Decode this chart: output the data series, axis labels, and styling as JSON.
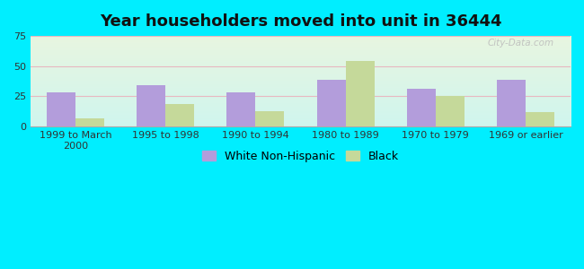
{
  "title": "Year householders moved into unit in 36444",
  "categories": [
    "1999 to March\n2000",
    "1995 to 1998",
    "1990 to 1994",
    "1980 to 1989",
    "1970 to 1979",
    "1969 or earlier"
  ],
  "white_values": [
    28,
    34,
    28,
    39,
    31,
    39
  ],
  "black_values": [
    7,
    19,
    13,
    54,
    25,
    12
  ],
  "white_color": "#b39ddb",
  "black_color": "#c5d99a",
  "ylim": [
    0,
    75
  ],
  "yticks": [
    0,
    25,
    50,
    75
  ],
  "outer_bg": "#00eeff",
  "plot_bg_top": "#d0f5ee",
  "plot_bg_bottom": "#e8f5e0",
  "grid_color": "#e8b8c0",
  "watermark": "City-Data.com",
  "legend_white": "White Non-Hispanic",
  "legend_black": "Black",
  "bar_width": 0.32,
  "title_fontsize": 13,
  "tick_fontsize": 8,
  "legend_fontsize": 9
}
